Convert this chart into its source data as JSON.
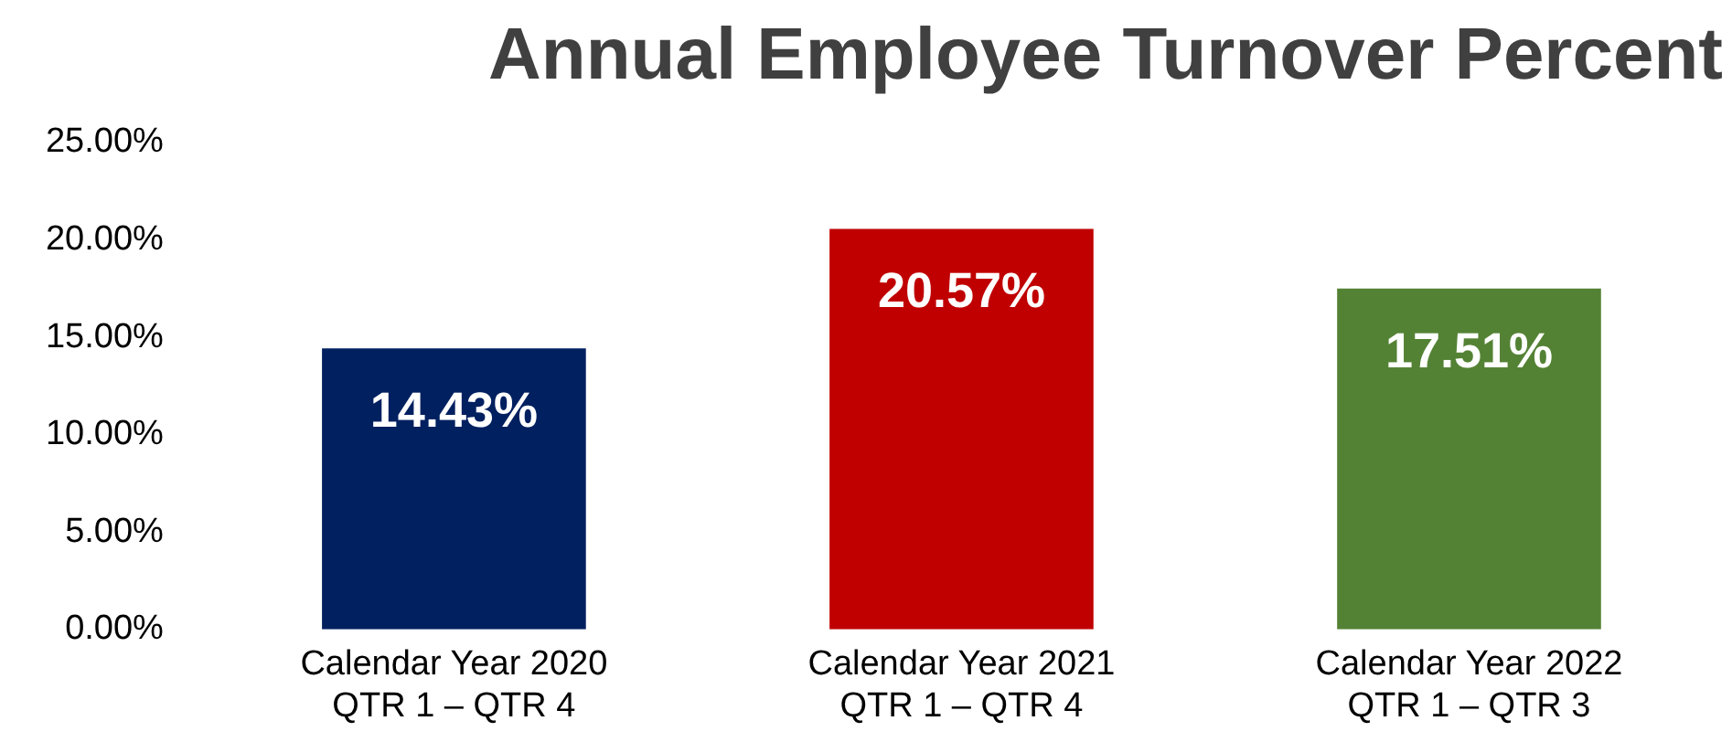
{
  "chart_data": {
    "type": "bar",
    "title": "Annual Employee Turnover Percent",
    "categories": [
      "Calendar Year 2020\nQTR 1 – QTR 4",
      "Calendar Year 2021\nQTR 1 – QTR 4",
      "Calendar Year 2022\nQTR 1 – QTR 3"
    ],
    "values": [
      14.43,
      20.57,
      17.51
    ],
    "colors": [
      "#002060",
      "#c00000",
      "#548235"
    ],
    "value_labels": [
      "14.43%",
      "20.57%",
      "17.51%"
    ],
    "ylim": [
      0,
      25
    ],
    "yticks": [
      {
        "value": 0,
        "label": "0.00%"
      },
      {
        "value": 5,
        "label": "5.00%"
      },
      {
        "value": 10,
        "label": "10.00%"
      },
      {
        "value": 15,
        "label": "15.00%"
      },
      {
        "value": 20,
        "label": "20.00%"
      },
      {
        "value": 25,
        "label": "25.00%"
      }
    ],
    "grid": false,
    "legend": false
  }
}
